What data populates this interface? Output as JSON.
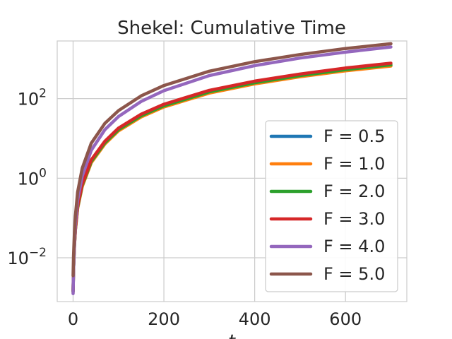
{
  "chart_data": {
    "type": "line",
    "title": "Shekel: Cumulative Time",
    "xlabel": "t",
    "ylabel": "",
    "xlim": [
      -35,
      735
    ],
    "ylim_log10": [
      -3.1,
      3.45
    ],
    "yscale": "log",
    "grid": true,
    "legend_position": "lower-right",
    "x_ticks": [
      {
        "value": 0,
        "label": "0"
      },
      {
        "value": 200,
        "label": "200"
      },
      {
        "value": 400,
        "label": "400"
      },
      {
        "value": 600,
        "label": "600"
      }
    ],
    "y_ticks": [
      {
        "value_log10": -2,
        "base": "10",
        "exp": "−2"
      },
      {
        "value_log10": 0,
        "base": "10",
        "exp": "0"
      },
      {
        "value_log10": 2,
        "base": "10",
        "exp": "2"
      }
    ],
    "series": [
      {
        "name": "F = 0.5",
        "color": "#1f77b4",
        "x": [
          0,
          1,
          3,
          5,
          10,
          20,
          40,
          70,
          100,
          150,
          200,
          300,
          400,
          500,
          600,
          700
        ],
        "log10_y": [
          -2.85,
          -2.3,
          -1.7,
          -1.3,
          -0.75,
          -0.2,
          0.4,
          0.87,
          1.2,
          1.55,
          1.8,
          2.15,
          2.38,
          2.56,
          2.71,
          2.83
        ]
      },
      {
        "name": "F = 1.0",
        "color": "#ff7f0e",
        "x": [
          0,
          1,
          3,
          5,
          10,
          20,
          40,
          70,
          100,
          150,
          200,
          300,
          400,
          500,
          600,
          700
        ],
        "log10_y": [
          -2.86,
          -2.31,
          -1.71,
          -1.31,
          -0.76,
          -0.21,
          0.39,
          0.86,
          1.19,
          1.54,
          1.79,
          2.14,
          2.37,
          2.55,
          2.7,
          2.82
        ]
      },
      {
        "name": "F = 2.0",
        "color": "#2ca02c",
        "x": [
          0,
          1,
          3,
          5,
          10,
          20,
          40,
          70,
          100,
          150,
          200,
          300,
          400,
          500,
          600,
          700
        ],
        "log10_y": [
          -2.84,
          -2.29,
          -1.69,
          -1.29,
          -0.73,
          -0.18,
          0.42,
          0.89,
          1.22,
          1.57,
          1.82,
          2.17,
          2.4,
          2.58,
          2.73,
          2.85
        ]
      },
      {
        "name": "F = 3.0",
        "color": "#d62728",
        "x": [
          0,
          1,
          3,
          5,
          10,
          20,
          40,
          70,
          100,
          150,
          200,
          300,
          400,
          500,
          600,
          700
        ],
        "log10_y": [
          -2.82,
          -2.27,
          -1.67,
          -1.27,
          -0.7,
          -0.15,
          0.46,
          0.93,
          1.26,
          1.61,
          1.86,
          2.21,
          2.44,
          2.62,
          2.77,
          2.89
        ]
      },
      {
        "name": "F = 4.0",
        "color": "#9467bd",
        "x": [
          0,
          1,
          3,
          5,
          10,
          20,
          40,
          70,
          100,
          150,
          200,
          300,
          400,
          500,
          600,
          700
        ],
        "log10_y": [
          -2.9,
          -2.3,
          -1.6,
          -1.15,
          -0.55,
          0.05,
          0.7,
          1.22,
          1.55,
          1.93,
          2.2,
          2.58,
          2.83,
          3.02,
          3.17,
          3.3
        ]
      },
      {
        "name": "F = 5.0",
        "color": "#8c564b",
        "x": [
          0,
          1,
          3,
          5,
          10,
          20,
          40,
          70,
          100,
          150,
          200,
          300,
          400,
          500,
          600,
          700
        ],
        "log10_y": [
          -2.45,
          -1.95,
          -1.35,
          -0.95,
          -0.35,
          0.25,
          0.88,
          1.38,
          1.7,
          2.07,
          2.33,
          2.69,
          2.93,
          3.11,
          3.26,
          3.38
        ]
      }
    ]
  }
}
